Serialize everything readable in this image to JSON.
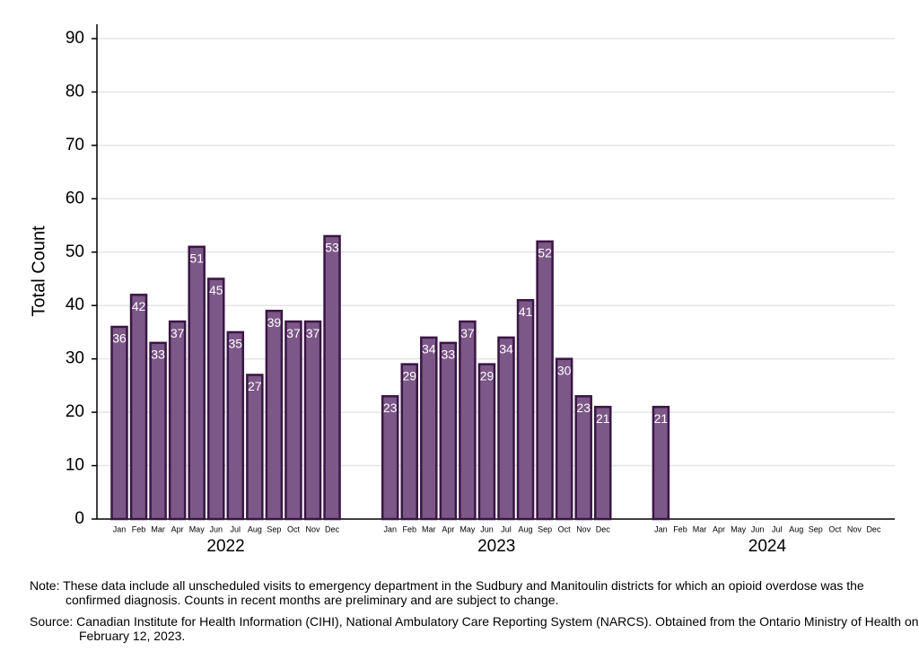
{
  "chart_data": {
    "type": "bar",
    "y_label": "Total Count",
    "color": "#7c5888",
    "edge_color": "#3a1645",
    "ylim": [
      0,
      90
    ],
    "yticks": [
      0,
      10,
      20,
      30,
      40,
      50,
      60,
      70,
      80,
      90
    ],
    "grid": true,
    "groups": [
      {
        "name": "2022",
        "categories": [
          "Jan",
          "Feb",
          "Mar",
          "Apr",
          "May",
          "Jun",
          "Jul",
          "Aug",
          "Sep",
          "Oct",
          "Nov",
          "Dec"
        ],
        "values": [
          36,
          42,
          33,
          37,
          51,
          45,
          35,
          27,
          39,
          37,
          37,
          53
        ]
      },
      {
        "name": "2023",
        "categories": [
          "Jan",
          "Feb",
          "Mar",
          "Apr",
          "May",
          "Jun",
          "Jul",
          "Aug",
          "Sep",
          "Oct",
          "Nov",
          "Dec"
        ],
        "values": [
          23,
          29,
          34,
          33,
          37,
          29,
          34,
          41,
          52,
          30,
          23,
          21
        ]
      },
      {
        "name": "2024",
        "categories": [
          "Jan",
          "Feb",
          "Mar",
          "Apr",
          "May",
          "Jun",
          "Jul",
          "Aug",
          "Sep",
          "Oct",
          "Nov",
          "Dec"
        ],
        "values": [
          21,
          null,
          null,
          null,
          null,
          null,
          null,
          null,
          null,
          null,
          null,
          null
        ]
      }
    ]
  },
  "notes": {
    "note": "Note: These data include all unscheduled visits to emergency department in the Sudbury and Manitoulin districts for which an opioid overdose was the confirmed diagnosis. Counts in recent months are preliminary and are subject to change.",
    "source": "Source: Canadian Institute for Health Information (CIHI), National Ambulatory Care Reporting System (NARCS). Obtained from the Ontario Ministry of Health on February 12, 2023."
  }
}
